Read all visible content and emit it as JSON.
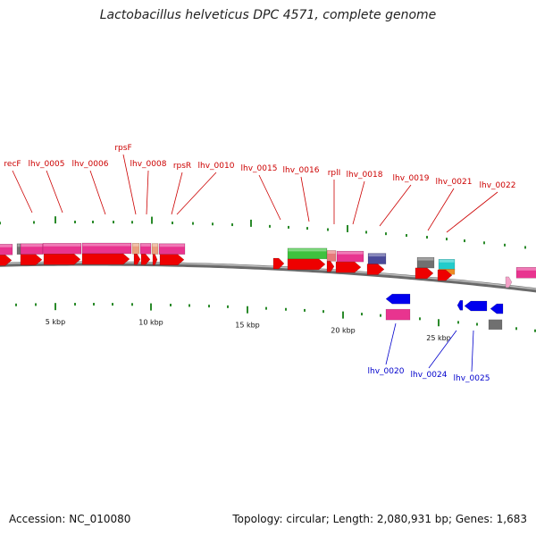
{
  "title": "Lactobacillus helveticus DPC 4571, complete genome",
  "accession_label": "Accession: NC_010080",
  "summary_label": "Topology: circular; Length: 2,080,931 bp; Genes: 1,683",
  "scale_labels": [
    "5 kbp",
    "10 kbp",
    "15 kbp",
    "20 kbp",
    "25 kbp"
  ],
  "forward_gene_labels": [
    "recF",
    "lhv_0005",
    "lhv_0006",
    "rpsF",
    "lhv_0008",
    "rpsR",
    "lhv_0010",
    "lhv_0015",
    "lhv_0016",
    "rplI",
    "lhv_0018",
    "lhv_0019",
    "lhv_0021",
    "lhv_0022"
  ],
  "reverse_gene_labels": [
    "lhv_0020",
    "lhv_0024",
    "lhv_0025"
  ],
  "colors": {
    "forward_label": "#cc0000",
    "reverse_label": "#0000cc",
    "gene_forward": "#ee0000",
    "gene_reverse": "#0000ee",
    "feature_pink": "#e8348f",
    "feature_green": "#3ec23e",
    "feature_navy": "#4a4a99",
    "feature_gray": "#707070",
    "feature_cyan": "#22cccc",
    "feature_orange": "#ee8a22",
    "backbone": "#8a8a8a",
    "tick": "#2a8a2a"
  }
}
